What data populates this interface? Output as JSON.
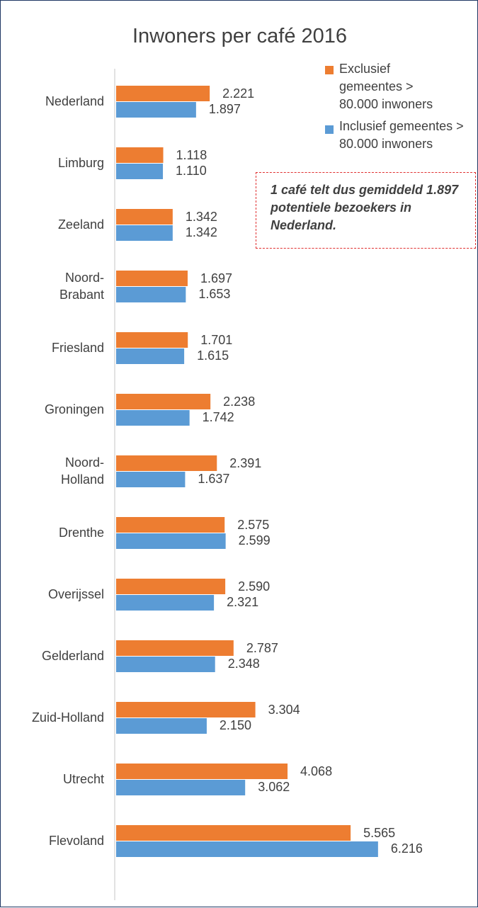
{
  "chart_data": {
    "type": "bar",
    "orientation": "horizontal",
    "title": "Inwoners per café 2016",
    "categories": [
      "Nederland",
      "Limburg",
      "Zeeland",
      "Noord-\nBrabant",
      "Friesland",
      "Groningen",
      "Noord-\nHolland",
      "Drenthe",
      "Overijssel",
      "Gelderland",
      "Zuid-Holland",
      "Utrecht",
      "Flevoland"
    ],
    "series": [
      {
        "name": "Exclusief gemeentes > 80.000 inwoners",
        "color": "#ed7d31",
        "values": [
          2221,
          1118,
          1342,
          1697,
          1701,
          2238,
          2391,
          2575,
          2590,
          2787,
          3304,
          4068,
          5565
        ],
        "value_labels": [
          "2.221",
          "1.118",
          "1.342",
          "1.697",
          "1.701",
          "2.238",
          "2.391",
          "2.575",
          "2.590",
          "2.787",
          "3.304",
          "4.068",
          "5.565"
        ]
      },
      {
        "name": "Inclusief gemeentes > 80.000 inwoners",
        "color": "#5b9bd5",
        "values": [
          1897,
          1110,
          1342,
          1653,
          1615,
          1742,
          1637,
          2599,
          2321,
          2348,
          2150,
          3062,
          6216
        ],
        "value_labels": [
          "1.897",
          "1.110",
          "1.342",
          "1.653",
          "1.615",
          "1.742",
          "1.637",
          "2.599",
          "2.321",
          "2.348",
          "2.150",
          "3.062",
          "6.216"
        ]
      }
    ],
    "annotation": "1 café telt dus gemiddeld 1.897 potentiele bezoekers in Nederland.",
    "legend": "top-right"
  }
}
